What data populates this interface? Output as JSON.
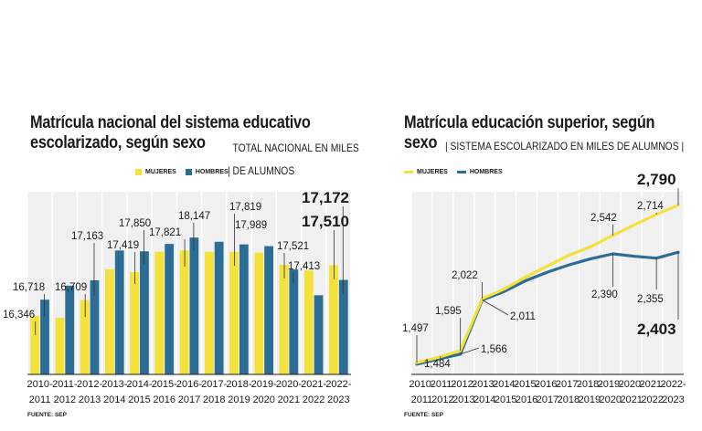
{
  "chart_data": [
    {
      "type": "bar",
      "title": "Matrícula nacional del sistema educativo escolarizado, según sexo",
      "subtitle": "TOTAL NACIONAL EN MILES DE ALUMNOS",
      "categories": [
        "2010-2011",
        "2011-2012",
        "2012-2013",
        "2013-2014",
        "2014-2015",
        "2015-2016",
        "2016-2017",
        "2017-2018",
        "2018-2019",
        "2019-2020",
        "2020-2021",
        "2021-2022",
        "2022-2023"
      ],
      "cat_top": [
        "2010-",
        "2011-",
        "2012-",
        "2013-",
        "2014-",
        "2015-",
        "2016-",
        "2017-",
        "2018-",
        "2019-",
        "2020-",
        "2021-",
        "2022-"
      ],
      "cat_bottom": [
        "2011",
        "2012",
        "2013",
        "2014",
        "2015",
        "2016",
        "2017",
        "2018",
        "2019",
        "2020",
        "2021",
        "2022",
        "2023"
      ],
      "series": [
        {
          "name": "MUJERES",
          "color": "#f4e13a",
          "values": [
            16346,
            16300,
            16709,
            17419,
            17350,
            17821,
            17850,
            17820,
            17819,
            17800,
            17521,
            17390,
            17510
          ]
        },
        {
          "name": "HOMBRES",
          "color": "#2c6d96",
          "values": [
            16718,
            17040,
            17163,
            17850,
            17830,
            18000,
            18147,
            18050,
            17989,
            17950,
            17413,
            16820,
            17172
          ]
        }
      ],
      "ylim": [
        15000,
        19200
      ],
      "value_labels": [
        "16,346",
        "16,718",
        "16,709",
        "17,163",
        "17,419",
        "17,850",
        "17,821",
        "18,147",
        "17,819",
        "17,989",
        "17,521",
        "17,413",
        "17,172",
        "17,510"
      ],
      "legend": [
        "MUJERES",
        "HOMBRES"
      ],
      "source": "FUENTE: SEP"
    },
    {
      "type": "line",
      "title": "Matrícula educación superior, según sexo",
      "subtitle": "SISTEMA ESCOLARIZADO EN MILES DE ALUMNOS",
      "categories": [
        "2010-2011",
        "2011-2012",
        "2012-2013",
        "2013-2014",
        "2014-2015",
        "2015-2016",
        "2016-2017",
        "2017-2018",
        "2018-2019",
        "2019-2020",
        "2020-2021",
        "2021-2022",
        "2022-2023"
      ],
      "cat_top": [
        "2010-",
        "2011-",
        "2012-",
        "2013-",
        "2014-",
        "2015-",
        "2016-",
        "2017-",
        "2018-",
        "2019-",
        "2020-",
        "2021-",
        "2022-"
      ],
      "cat_bottom": [
        "2011",
        "2012",
        "2013",
        "2014",
        "2015",
        "2016",
        "2017",
        "2018",
        "2019",
        "2020",
        "2021",
        "2022",
        "2023"
      ],
      "series": [
        {
          "name": "MUJERES",
          "color": "#f4e13a",
          "values": [
            1497,
            1540,
            1595,
            2022,
            2100,
            2200,
            2290,
            2380,
            2450,
            2542,
            2630,
            2714,
            2790
          ]
        },
        {
          "name": "HOMBRES",
          "color": "#2c6d96",
          "values": [
            1484,
            1525,
            1566,
            2011,
            2080,
            2170,
            2240,
            2300,
            2350,
            2390,
            2370,
            2355,
            2403
          ]
        }
      ],
      "ylim": [
        1400,
        2900
      ],
      "value_labels": [
        "1,497",
        "1,484",
        "1,595",
        "1,566",
        "2,022",
        "2,011",
        "2,542",
        "2,390",
        "2,714",
        "2,355",
        "2,790",
        "2,403"
      ],
      "legend": [
        "MUJERES",
        "HOMBRES"
      ],
      "source": "FUENTE: SEP"
    }
  ]
}
